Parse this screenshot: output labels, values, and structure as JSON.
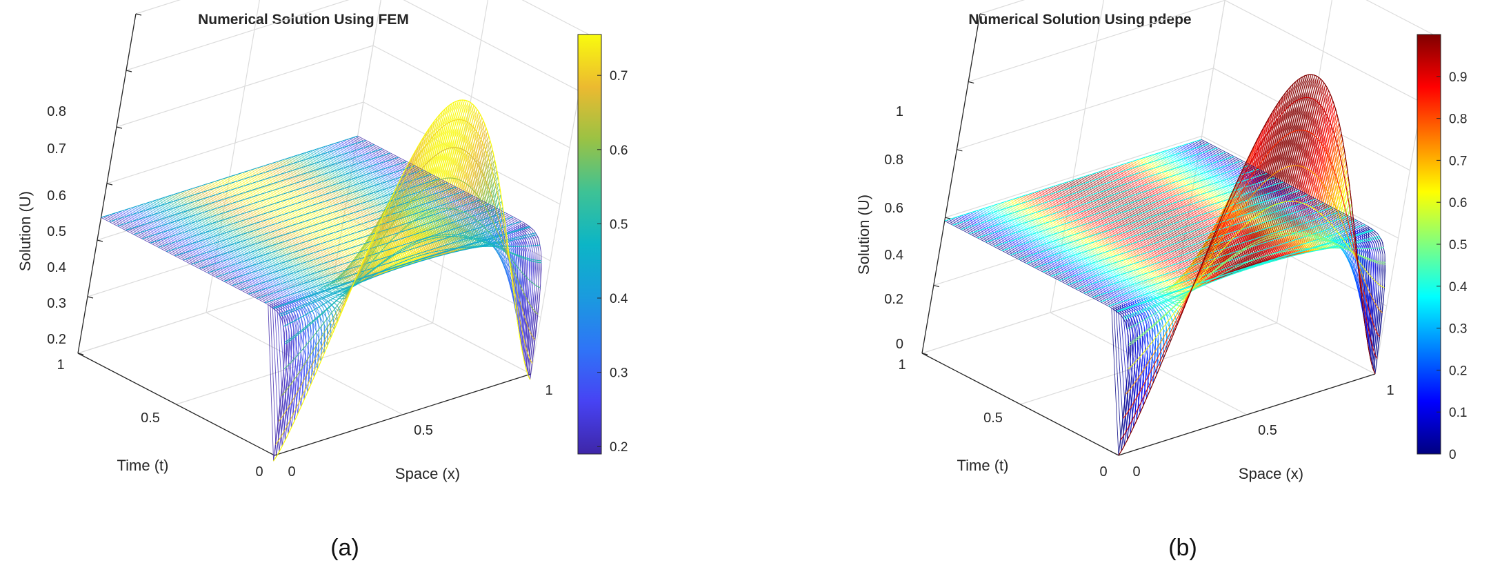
{
  "chart_data": [
    {
      "type": "surface",
      "title": "Numerical Solution Using FEM",
      "xlabel": "Space (x)",
      "ylabel": "Time (t)",
      "zlabel": "Solution (U)",
      "xlim": [
        0,
        1
      ],
      "ylim": [
        0,
        1
      ],
      "zlim": [
        0.2,
        0.8
      ],
      "x_ticks": [
        "0",
        "0.5",
        "1"
      ],
      "y_ticks": [
        "0",
        "0.5",
        "1"
      ],
      "z_ticks": [
        "0.2",
        "0.3",
        "0.4",
        "0.5",
        "0.6",
        "0.7",
        "0.8"
      ],
      "colormap": "parula",
      "colorbar_range": [
        0.19,
        0.755
      ],
      "colorbar_ticks": [
        "0.2",
        "0.3",
        "0.4",
        "0.5",
        "0.6",
        "0.7"
      ],
      "steady_value": 0.44,
      "initial_peak": 0.755,
      "initial_min": 0.19,
      "grid": true,
      "caption": "(a)"
    },
    {
      "type": "surface",
      "title": "Numerical Solution Using pdepe",
      "xlabel": "Space (x)",
      "ylabel": "Time (t)",
      "zlabel": "Solution (U)",
      "xlim": [
        0,
        1
      ],
      "ylim": [
        0,
        1
      ],
      "zlim": [
        0,
        1
      ],
      "x_ticks": [
        "0",
        "0.5",
        "1"
      ],
      "y_ticks": [
        "0",
        "0.5",
        "1"
      ],
      "z_ticks": [
        "0",
        "0.2",
        "0.4",
        "0.6",
        "0.8",
        "1"
      ],
      "colormap": "jet",
      "colorbar_range": [
        0,
        1
      ],
      "colorbar_ticks": [
        "0",
        "0.1",
        "0.2",
        "0.3",
        "0.4",
        "0.5",
        "0.6",
        "0.7",
        "0.8",
        "0.9"
      ],
      "steady_value": 0.39,
      "initial_peak": 1.0,
      "initial_min": 0.0,
      "grid": true,
      "caption": "(b)"
    }
  ]
}
